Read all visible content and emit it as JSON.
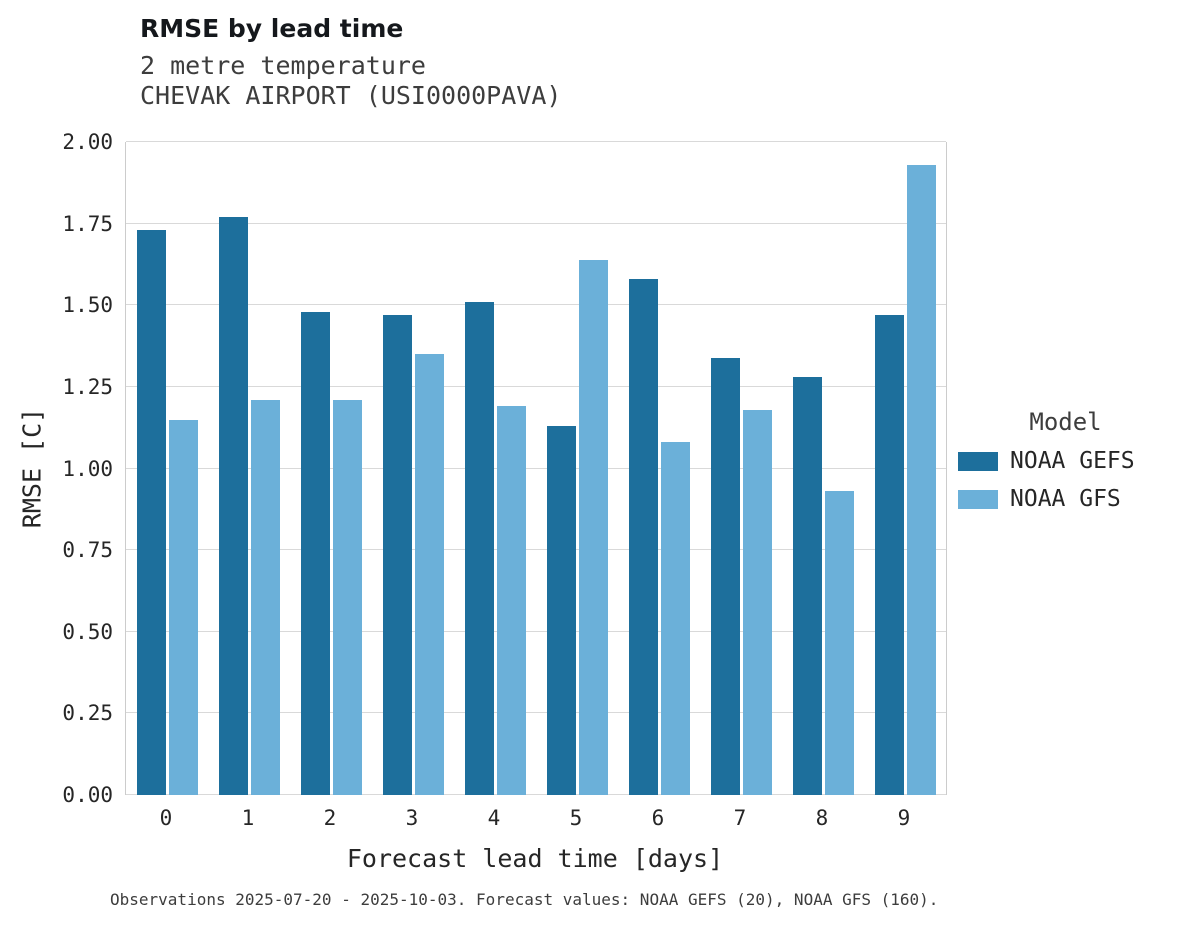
{
  "header": {
    "title": "RMSE by lead time",
    "subtitle_line1": "2 metre temperature",
    "subtitle_line2": "CHEVAK AIRPORT (USI0000PAVA)"
  },
  "footer": {
    "caption": "Observations 2025-07-20 - 2025-10-03. Forecast values: NOAA GEFS (20), NOAA GFS (160)."
  },
  "legend": {
    "title": "Model",
    "entries": [
      {
        "label": "NOAA GEFS",
        "color": "#1d6f9c"
      },
      {
        "label": "NOAA GFS",
        "color": "#6bb0d9"
      }
    ]
  },
  "chart_data": {
    "type": "bar",
    "title": "RMSE by lead time",
    "subtitle": "2 metre temperature — CHEVAK AIRPORT (USI0000PAVA)",
    "xlabel": "Forecast lead time [days]",
    "ylabel": "RMSE [C]",
    "categories": [
      "0",
      "1",
      "2",
      "3",
      "4",
      "5",
      "6",
      "7",
      "8",
      "9"
    ],
    "series": [
      {
        "name": "NOAA GEFS",
        "color": "#1d6f9c",
        "values": [
          1.73,
          1.77,
          1.48,
          1.47,
          1.51,
          1.13,
          1.58,
          1.34,
          1.28,
          1.47
        ]
      },
      {
        "name": "NOAA GFS",
        "color": "#6bb0d9",
        "values": [
          1.15,
          1.21,
          1.21,
          1.35,
          1.19,
          1.64,
          1.08,
          1.18,
          0.93,
          1.93
        ]
      }
    ],
    "ylim": [
      0,
      2.0
    ],
    "ytick_labels": [
      "0.00",
      "0.25",
      "0.50",
      "0.75",
      "1.00",
      "1.25",
      "1.50",
      "1.75",
      "2.00"
    ],
    "grid": true,
    "legend_position": "right-center",
    "colors": {
      "grid": "#d9d9d9",
      "spine": "#cccccc"
    }
  }
}
